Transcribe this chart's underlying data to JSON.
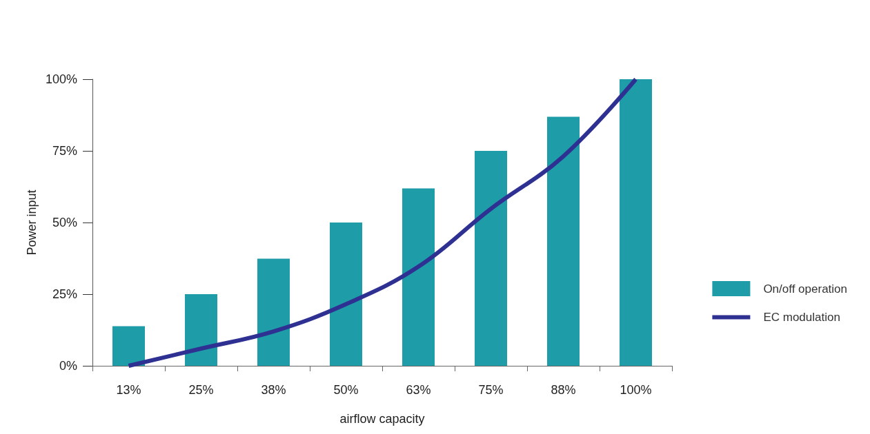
{
  "chart_data": {
    "type": "bar",
    "xlabel": "airflow capacity",
    "ylabel": "Power input",
    "categories": [
      "13%",
      "25%",
      "38%",
      "50%",
      "63%",
      "75%",
      "88%",
      "100%"
    ],
    "series": [
      {
        "name": "On/off operation",
        "color": "#1e9ca8",
        "values": [
          13.8,
          25,
          37.4,
          50,
          61.9,
          75,
          86.9,
          100
        ]
      },
      {
        "name": "EC modulation",
        "type": "line",
        "color": "#2e3192",
        "values": [
          0,
          6,
          12,
          21.5,
          34.6,
          54.8,
          73.1,
          100
        ]
      }
    ],
    "ylim": [
      0,
      100
    ],
    "yticks": [
      {
        "value": 0,
        "label": "0%"
      },
      {
        "value": 25,
        "label": "25%"
      },
      {
        "value": 50,
        "label": "50%"
      },
      {
        "value": 75,
        "label": "75%"
      },
      {
        "value": 100,
        "label": "100%"
      }
    ],
    "grid": false,
    "legend": "right",
    "marker": "none"
  }
}
